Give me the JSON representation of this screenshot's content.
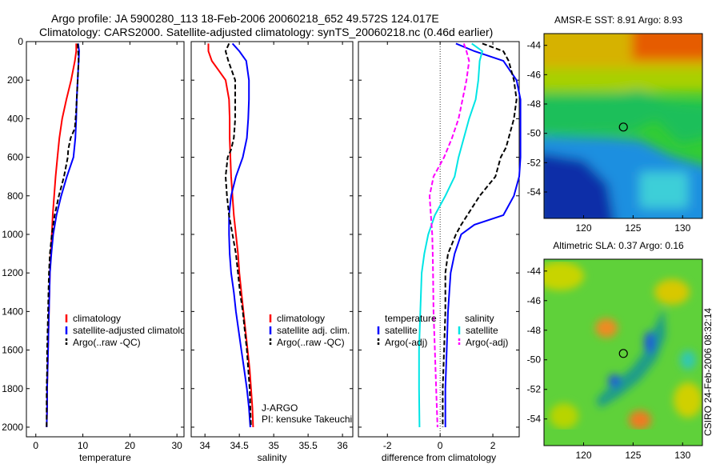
{
  "header": {
    "line1": "Argo profile: JA 5900280_113 18-Feb-2006 20060218_652 49.572S 124.017E",
    "line2": "Climatology: CARS2000. Satellite-adjusted climatology: synTS_20060218.nc (0.46d earlier)"
  },
  "side_label": "CSIRO 24-Feb-2006 08:32:14",
  "colors": {
    "climatology": "#ff0000",
    "satellite": "#0000ff",
    "argo": "#000000",
    "sat_salinity": "#00e5e5",
    "argo_adj_salinity": "#ff00ff"
  },
  "chart_data": [
    {
      "id": "temperature",
      "type": "line",
      "xlabel": "temperature",
      "xlim": [
        -2,
        31.5
      ],
      "ylim": [
        0,
        2050
      ],
      "y_inverted": true,
      "xticks": [
        "0",
        "10",
        "20",
        "30"
      ],
      "xtick_values": [
        0,
        10,
        20,
        30
      ],
      "yticks": [
        "0",
        "200",
        "400",
        "600",
        "800",
        "1000",
        "1200",
        "1400",
        "1600",
        "1800",
        "2000"
      ],
      "ytick_values": [
        0,
        200,
        400,
        600,
        800,
        1000,
        1200,
        1400,
        1600,
        1800,
        2000
      ],
      "legend": [
        "climatology",
        "satellite-adjusted climatology",
        "Argo(..raw -QC)"
      ],
      "series": [
        {
          "name": "climatology",
          "color": "#ff0000",
          "dash": "",
          "points": [
            [
              8.6,
              10
            ],
            [
              8.6,
              50
            ],
            [
              8.3,
              100
            ],
            [
              7.5,
              200
            ],
            [
              6.5,
              300
            ],
            [
              5.6,
              400
            ],
            [
              5.0,
              500
            ],
            [
              4.6,
              600
            ],
            [
              4.2,
              700
            ],
            [
              3.9,
              800
            ],
            [
              3.6,
              900
            ],
            [
              3.4,
              1000
            ],
            [
              3.2,
              1100
            ],
            [
              3.0,
              1200
            ],
            [
              2.9,
              1300
            ],
            [
              2.8,
              1400
            ],
            [
              2.7,
              1500
            ],
            [
              2.6,
              1600
            ],
            [
              2.5,
              1700
            ],
            [
              2.4,
              1800
            ],
            [
              2.4,
              1900
            ],
            [
              2.3,
              2000
            ]
          ]
        },
        {
          "name": "satellite-adjusted climatology",
          "color": "#0000ff",
          "dash": "",
          "points": [
            [
              9.0,
              10
            ],
            [
              9.2,
              50
            ],
            [
              9.1,
              100
            ],
            [
              8.9,
              200
            ],
            [
              8.7,
              300
            ],
            [
              8.6,
              400
            ],
            [
              8.4,
              500
            ],
            [
              8.0,
              600
            ],
            [
              6.6,
              700
            ],
            [
              5.4,
              800
            ],
            [
              4.4,
              900
            ],
            [
              3.7,
              1000
            ],
            [
              3.3,
              1100
            ],
            [
              3.0,
              1200
            ],
            [
              2.9,
              1300
            ],
            [
              2.8,
              1400
            ],
            [
              2.7,
              1500
            ],
            [
              2.6,
              1600
            ],
            [
              2.5,
              1700
            ],
            [
              2.4,
              1800
            ],
            [
              2.4,
              1900
            ],
            [
              2.3,
              2000
            ]
          ]
        },
        {
          "name": "Argo(..raw -QC)",
          "color": "#000000",
          "dash": "6,3",
          "points": [
            [
              8.9,
              10
            ],
            [
              9.0,
              50
            ],
            [
              9.1,
              100
            ],
            [
              8.9,
              200
            ],
            [
              8.6,
              350
            ],
            [
              8.3,
              450
            ],
            [
              7.4,
              500
            ],
            [
              6.9,
              560
            ],
            [
              6.8,
              600
            ],
            [
              6.0,
              700
            ],
            [
              4.9,
              800
            ],
            [
              4.0,
              900
            ],
            [
              3.4,
              1000
            ],
            [
              3.0,
              1100
            ],
            [
              2.8,
              1200
            ],
            [
              2.7,
              1300
            ],
            [
              2.6,
              1400
            ],
            [
              2.5,
              1500
            ],
            [
              2.4,
              1600
            ],
            [
              2.4,
              1700
            ],
            [
              2.3,
              1800
            ],
            [
              2.3,
              1900
            ],
            [
              2.3,
              2000
            ]
          ]
        }
      ]
    },
    {
      "id": "salinity",
      "type": "line",
      "xlabel": "salinity",
      "xlim": [
        33.8,
        36.15
      ],
      "ylim": [
        0,
        2050
      ],
      "y_inverted": true,
      "xticks": [
        "34",
        "34.5",
        "35",
        "35.5",
        "36"
      ],
      "xtick_values": [
        34,
        34.5,
        35,
        35.5,
        36
      ],
      "legend": [
        "climatology",
        "satellite adj. clim.",
        "Argo(..raw -QC)"
      ],
      "annotations": [
        "J-ARGO",
        "PI: kensuke Takeuchi"
      ],
      "series": [
        {
          "name": "climatology",
          "color": "#ff0000",
          "dash": "",
          "points": [
            [
              34.05,
              10
            ],
            [
              34.05,
              50
            ],
            [
              34.1,
              100
            ],
            [
              34.2,
              150
            ],
            [
              34.3,
              200
            ],
            [
              34.35,
              300
            ],
            [
              34.36,
              400
            ],
            [
              34.36,
              500
            ],
            [
              34.37,
              600
            ],
            [
              34.38,
              700
            ],
            [
              34.4,
              800
            ],
            [
              34.42,
              900
            ],
            [
              34.45,
              1000
            ],
            [
              34.48,
              1100
            ],
            [
              34.5,
              1200
            ],
            [
              34.53,
              1300
            ],
            [
              34.56,
              1400
            ],
            [
              34.59,
              1500
            ],
            [
              34.62,
              1600
            ],
            [
              34.65,
              1700
            ],
            [
              34.67,
              1800
            ],
            [
              34.69,
              1900
            ],
            [
              34.7,
              2000
            ]
          ]
        },
        {
          "name": "satellite adj. clim.",
          "color": "#0000ff",
          "dash": "",
          "points": [
            [
              34.4,
              10
            ],
            [
              34.5,
              50
            ],
            [
              34.6,
              100
            ],
            [
              34.64,
              200
            ],
            [
              34.64,
              300
            ],
            [
              34.63,
              400
            ],
            [
              34.61,
              500
            ],
            [
              34.55,
              600
            ],
            [
              34.45,
              700
            ],
            [
              34.38,
              800
            ],
            [
              34.35,
              900
            ],
            [
              34.35,
              1000
            ],
            [
              34.36,
              1100
            ],
            [
              34.38,
              1200
            ],
            [
              34.42,
              1300
            ],
            [
              34.45,
              1400
            ],
            [
              34.49,
              1500
            ],
            [
              34.53,
              1600
            ],
            [
              34.57,
              1700
            ],
            [
              34.61,
              1800
            ],
            [
              34.64,
              1900
            ],
            [
              34.66,
              2000
            ]
          ]
        },
        {
          "name": "Argo(..raw -QC)",
          "color": "#000000",
          "dash": "6,3",
          "points": [
            [
              34.35,
              10
            ],
            [
              34.3,
              50
            ],
            [
              34.34,
              100
            ],
            [
              34.44,
              200
            ],
            [
              34.44,
              300
            ],
            [
              34.44,
              400
            ],
            [
              34.43,
              450
            ],
            [
              34.42,
              500
            ],
            [
              34.38,
              560
            ],
            [
              34.33,
              600
            ],
            [
              34.3,
              700
            ],
            [
              34.32,
              800
            ],
            [
              34.35,
              900
            ],
            [
              34.4,
              1000
            ],
            [
              34.45,
              1100
            ],
            [
              34.48,
              1200
            ],
            [
              34.51,
              1300
            ],
            [
              34.55,
              1400
            ],
            [
              34.58,
              1500
            ],
            [
              34.61,
              1600
            ],
            [
              34.63,
              1700
            ],
            [
              34.65,
              1800
            ],
            [
              34.66,
              1900
            ],
            [
              34.67,
              2000
            ]
          ]
        }
      ]
    },
    {
      "id": "difference",
      "type": "line",
      "xlabel": "difference from climatology",
      "xlim": [
        -3.1,
        3.0
      ],
      "ylim": [
        0,
        2050
      ],
      "y_inverted": true,
      "zero_line": true,
      "xticks": [
        "-2",
        "0",
        "2"
      ],
      "xtick_values": [
        -2,
        0,
        2
      ],
      "legend_left_title": "temperature",
      "legend_right_title": "salinity",
      "legend_left": [
        "satellite",
        "Argo(-adj)"
      ],
      "legend_right": [
        "satellite",
        "Argo(-adj)"
      ],
      "series": [
        {
          "name": "temperature satellite",
          "color": "#0000ff",
          "dash": "",
          "points": [
            [
              0.6,
              10
            ],
            [
              1.3,
              50
            ],
            [
              2.4,
              100
            ],
            [
              2.9,
              200
            ],
            [
              3.05,
              300
            ],
            [
              3.05,
              400
            ],
            [
              3.05,
              500
            ],
            [
              3.05,
              600
            ],
            [
              3.0,
              700
            ],
            [
              2.8,
              800
            ],
            [
              2.4,
              900
            ],
            [
              1.3,
              950
            ],
            [
              0.8,
              1000
            ],
            [
              0.55,
              1100
            ],
            [
              0.4,
              1200
            ],
            [
              0.3,
              1400
            ],
            [
              0.25,
              1600
            ],
            [
              0.2,
              1800
            ],
            [
              0.2,
              2000
            ]
          ]
        },
        {
          "name": "temperature Argo(-adj)",
          "color": "#000000",
          "dash": "6,3",
          "points": [
            [
              1.6,
              10
            ],
            [
              2.4,
              50
            ],
            [
              2.6,
              100
            ],
            [
              2.8,
              200
            ],
            [
              2.9,
              300
            ],
            [
              2.8,
              400
            ],
            [
              2.6,
              500
            ],
            [
              2.5,
              550
            ],
            [
              2.3,
              600
            ],
            [
              2.1,
              700
            ],
            [
              1.5,
              800
            ],
            [
              0.8,
              950
            ],
            [
              0.6,
              1000
            ],
            [
              0.3,
              1100
            ],
            [
              0.2,
              1200
            ],
            [
              0.2,
              1400
            ],
            [
              0.15,
              1600
            ],
            [
              0.1,
              1800
            ],
            [
              0.1,
              2000
            ]
          ]
        },
        {
          "name": "salinity satellite",
          "color": "#00e5e5",
          "dash": "",
          "points": [
            [
              1.2,
              10
            ],
            [
              1.6,
              50
            ],
            [
              1.5,
              100
            ],
            [
              1.45,
              200
            ],
            [
              1.35,
              300
            ],
            [
              1.1,
              400
            ],
            [
              0.9,
              500
            ],
            [
              0.7,
              600
            ],
            [
              0.55,
              700
            ],
            [
              0.2,
              800
            ],
            [
              -0.2,
              900
            ],
            [
              -0.45,
              1000
            ],
            [
              -0.6,
              1100
            ],
            [
              -0.7,
              1200
            ],
            [
              -0.75,
              1400
            ],
            [
              -0.8,
              1600
            ],
            [
              -0.8,
              1800
            ],
            [
              -0.78,
              2000
            ]
          ]
        },
        {
          "name": "salinity Argo(-adj)",
          "color": "#ff00ff",
          "dash": "6,3",
          "points": [
            [
              0.9,
              10
            ],
            [
              1.0,
              50
            ],
            [
              1.1,
              100
            ],
            [
              1.0,
              200
            ],
            [
              0.85,
              300
            ],
            [
              0.7,
              400
            ],
            [
              0.45,
              500
            ],
            [
              0.15,
              600
            ],
            [
              -0.25,
              700
            ],
            [
              -0.4,
              800
            ],
            [
              -0.35,
              900
            ],
            [
              -0.3,
              1000
            ],
            [
              -0.28,
              1100
            ],
            [
              -0.27,
              1200
            ],
            [
              -0.25,
              1400
            ],
            [
              -0.2,
              1600
            ],
            [
              -0.15,
              1800
            ],
            [
              -0.1,
              2000
            ]
          ]
        }
      ]
    },
    {
      "id": "amsr-sst",
      "type": "heatmap",
      "title": "AMSR-E SST: 8.91  Argo: 8.93",
      "xticks": [
        "120",
        "125",
        "130"
      ],
      "xtick_values": [
        120,
        125,
        130
      ],
      "yticks": [
        "-44",
        "-46",
        "-48",
        "-50",
        "-52",
        "-54"
      ],
      "ytick_values": [
        -44,
        -46,
        -48,
        -50,
        -52,
        -54
      ],
      "xlim": [
        116,
        132
      ],
      "ylim": [
        -55.8,
        -43.2
      ],
      "marker": [
        124.017,
        -49.572
      ]
    },
    {
      "id": "altimetric-sla",
      "type": "heatmap",
      "title": "Altimetric SLA: 0.37  Argo: 0.16",
      "xticks": [
        "120",
        "125",
        "130"
      ],
      "xtick_values": [
        120,
        125,
        130
      ],
      "yticks": [
        "-44",
        "-46",
        "-48",
        "-50",
        "-52",
        "-54"
      ],
      "ytick_values": [
        -44,
        -46,
        -48,
        -50,
        -52,
        -54
      ],
      "xlim": [
        116,
        132
      ],
      "ylim": [
        -55.8,
        -43.2
      ],
      "marker": [
        124.017,
        -49.572
      ]
    }
  ]
}
